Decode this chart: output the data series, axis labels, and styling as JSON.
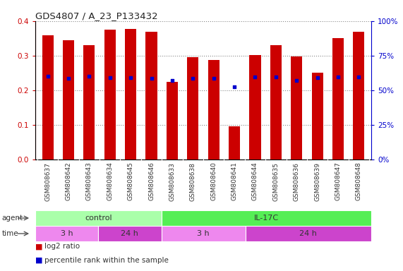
{
  "title": "GDS4807 / A_23_P133432",
  "samples": [
    "GSM808637",
    "GSM808642",
    "GSM808643",
    "GSM808634",
    "GSM808645",
    "GSM808646",
    "GSM808633",
    "GSM808638",
    "GSM808640",
    "GSM808641",
    "GSM808644",
    "GSM808635",
    "GSM808636",
    "GSM808639",
    "GSM808647",
    "GSM808648"
  ],
  "log2_ratio": [
    0.36,
    0.345,
    0.33,
    0.375,
    0.378,
    0.37,
    0.225,
    0.295,
    0.287,
    0.095,
    0.303,
    0.33,
    0.297,
    0.251,
    0.351,
    0.37
  ],
  "percentile_pct": [
    60,
    58.75,
    60,
    59.25,
    59.25,
    58.5,
    57,
    58.75,
    58.5,
    52.5,
    59.5,
    59.5,
    57,
    59,
    59.5,
    59.5
  ],
  "bar_color": "#cc0000",
  "dot_color": "#0000cc",
  "ylim_left": [
    0,
    0.4
  ],
  "ylim_right": [
    0,
    100
  ],
  "yticks_left": [
    0,
    0.1,
    0.2,
    0.3,
    0.4
  ],
  "yticks_right": [
    0,
    25,
    50,
    75,
    100
  ],
  "agent_groups": [
    {
      "label": "control",
      "start": 0,
      "end": 6,
      "color": "#aaffaa"
    },
    {
      "label": "IL-17C",
      "start": 6,
      "end": 16,
      "color": "#55ee55"
    }
  ],
  "time_groups": [
    {
      "label": "3 h",
      "start": 0,
      "end": 3,
      "color": "#ee88ee"
    },
    {
      "label": "24 h",
      "start": 3,
      "end": 6,
      "color": "#cc44cc"
    },
    {
      "label": "3 h",
      "start": 6,
      "end": 10,
      "color": "#ee88ee"
    },
    {
      "label": "24 h",
      "start": 10,
      "end": 16,
      "color": "#cc44cc"
    }
  ],
  "grid_color": "#888888",
  "left_axis_color": "#cc0000",
  "right_axis_color": "#0000cc",
  "xtick_bg_color": "#d0d0d0"
}
